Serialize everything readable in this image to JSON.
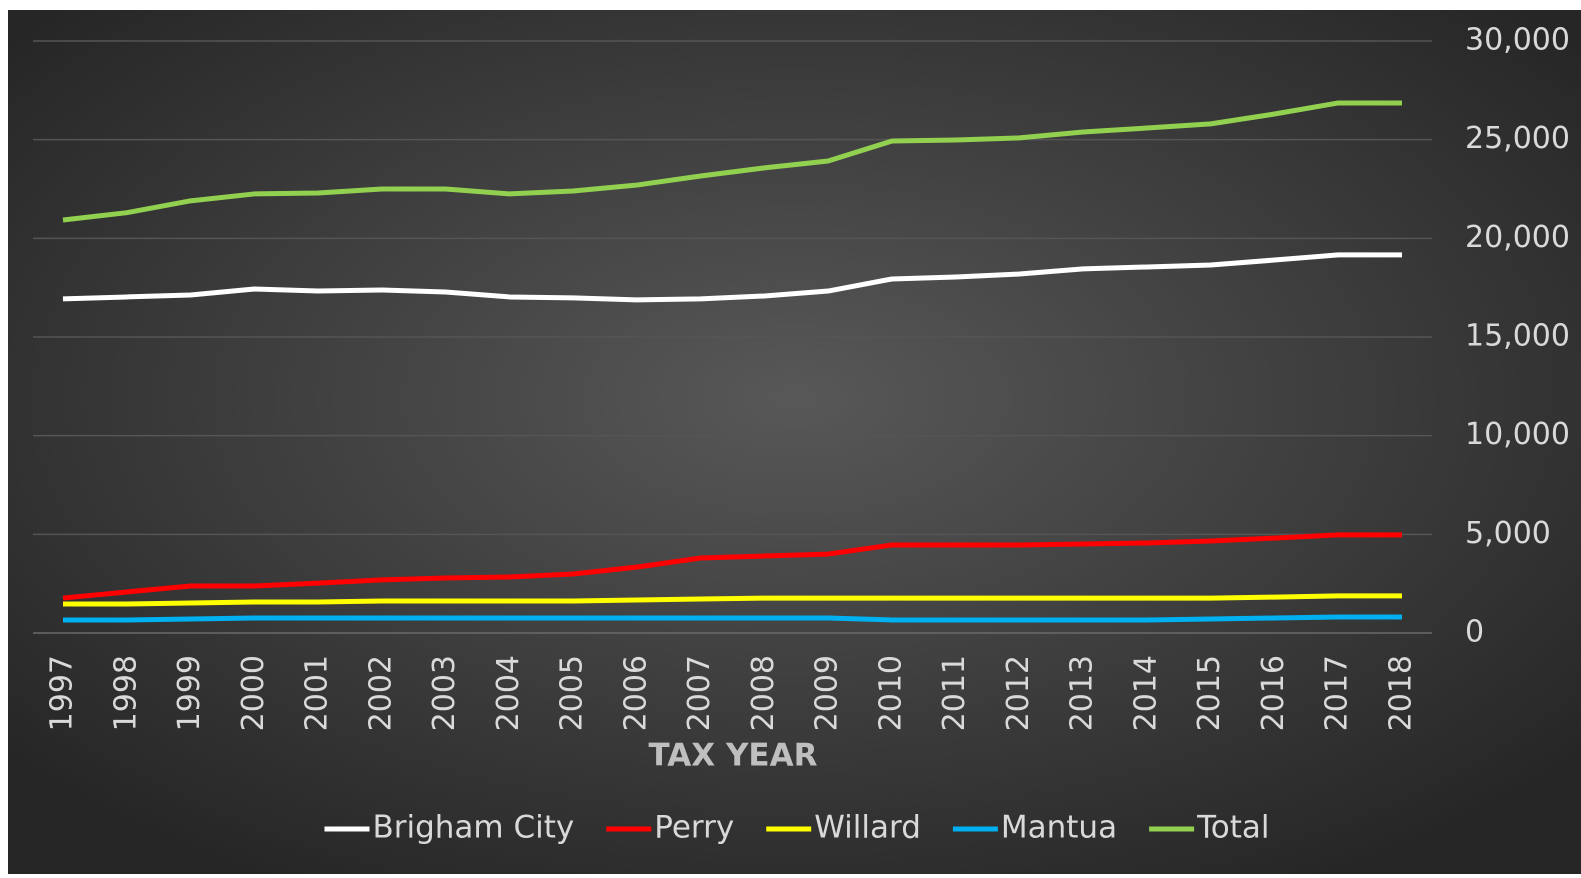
{
  "chart_data": {
    "type": "line",
    "x_title": "TAX YEAR",
    "categories": [
      "1997",
      "1998",
      "1999",
      "2000",
      "2001",
      "2002",
      "2003",
      "2004",
      "2005",
      "2006",
      "2007",
      "2008",
      "2009",
      "2010",
      "2011",
      "2012",
      "2013",
      "2014",
      "2015",
      "2016",
      "2017",
      "2018"
    ],
    "series": [
      {
        "name": "Brigham City",
        "color": "#ffffff",
        "values": [
          16930,
          17030,
          17130,
          17430,
          17330,
          17380,
          17280,
          17030,
          16980,
          16880,
          16930,
          17080,
          17330,
          17940,
          18040,
          18190,
          18450,
          18550,
          18650,
          18900,
          19160,
          19160
        ]
      },
      {
        "name": "Perry",
        "color": "#ff0000",
        "values": [
          1770,
          2080,
          2380,
          2380,
          2530,
          2690,
          2790,
          2840,
          2990,
          3340,
          3800,
          3900,
          4000,
          4460,
          4460,
          4460,
          4510,
          4560,
          4660,
          4810,
          4970,
          4970
        ]
      },
      {
        "name": "Willard",
        "color": "#ffff00",
        "values": [
          1470,
          1470,
          1520,
          1570,
          1570,
          1620,
          1620,
          1620,
          1620,
          1670,
          1720,
          1770,
          1770,
          1770,
          1770,
          1770,
          1770,
          1770,
          1770,
          1820,
          1880,
          1880
        ]
      },
      {
        "name": "Mantua",
        "color": "#00b0f0",
        "values": [
          660,
          660,
          710,
          760,
          760,
          760,
          760,
          760,
          760,
          760,
          760,
          760,
          760,
          660,
          660,
          660,
          660,
          660,
          710,
          760,
          810,
          810
        ]
      },
      {
        "name": "Total",
        "color": "#92d050",
        "values": [
          20930,
          21300,
          21900,
          22250,
          22300,
          22500,
          22500,
          22250,
          22400,
          22700,
          23160,
          23570,
          23920,
          24930,
          24980,
          25090,
          25390,
          25590,
          25800,
          26300,
          26860,
          26860
        ]
      }
    ],
    "ylim": [
      0,
      30000
    ],
    "yticks": [
      0,
      {
        "value": 5000,
        "label": "5,000"
      },
      {
        "value": 10000,
        "label": "10,000"
      },
      {
        "value": 15000,
        "label": "15,000"
      },
      {
        "value": 20000,
        "label": "20,000"
      },
      {
        "value": 25000,
        "label": "25,000"
      },
      {
        "value": 30000,
        "label": "30,000"
      }
    ],
    "grid": true,
    "legend": "bottom"
  }
}
